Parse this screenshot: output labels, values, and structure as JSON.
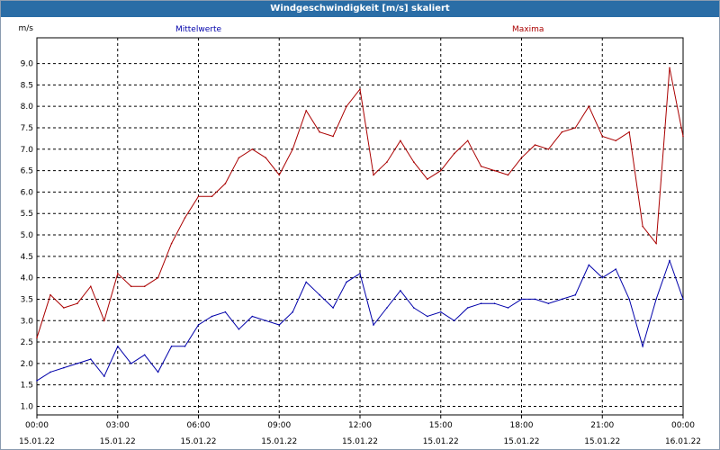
{
  "window": {
    "title": "Windgeschwindigkeit [m/s] skaliert"
  },
  "colors": {
    "mean": "#0000aa",
    "max": "#aa0000",
    "grid": "#000000",
    "titlebar": "#2a6da6"
  },
  "chart_data": {
    "type": "line",
    "title": "Windgeschwindigkeit [m/s] skaliert",
    "ylabel": "m/s",
    "ylim": [
      0.8,
      9.6
    ],
    "yticks": [
      "1.0",
      "1.5",
      "2.0",
      "2.5",
      "3.0",
      "3.5",
      "4.0",
      "4.5",
      "5.0",
      "5.5",
      "6.0",
      "6.5",
      "7.0",
      "7.5",
      "8.0",
      "8.5",
      "9.0"
    ],
    "xlim": [
      "2022-01-15 00:00",
      "2022-01-16 00:00"
    ],
    "xticks": [
      {
        "time": "00:00",
        "date": "15.01.22"
      },
      {
        "time": "03:00",
        "date": "15.01.22"
      },
      {
        "time": "06:00",
        "date": "15.01.22"
      },
      {
        "time": "09:00",
        "date": "15.01.22"
      },
      {
        "time": "12:00",
        "date": "15.01.22"
      },
      {
        "time": "15:00",
        "date": "15.01.22"
      },
      {
        "time": "18:00",
        "date": "15.01.22"
      },
      {
        "time": "21:00",
        "date": "15.01.22"
      },
      {
        "time": "00:00",
        "date": "16.01.22"
      }
    ],
    "grid": true,
    "x": [
      "00:00",
      "00:30",
      "01:00",
      "01:30",
      "02:00",
      "02:30",
      "03:00",
      "03:30",
      "04:00",
      "04:30",
      "05:00",
      "05:30",
      "06:00",
      "06:30",
      "07:00",
      "07:30",
      "08:00",
      "08:30",
      "09:00",
      "09:30",
      "10:00",
      "10:30",
      "11:00",
      "11:30",
      "12:00",
      "12:30",
      "13:00",
      "13:30",
      "14:00",
      "14:30",
      "15:00",
      "15:30",
      "16:00",
      "16:30",
      "17:00",
      "17:30",
      "18:00",
      "18:30",
      "19:00",
      "19:30",
      "20:00",
      "20:30",
      "21:00",
      "21:30",
      "22:00",
      "22:30",
      "23:00",
      "23:30",
      "24:00"
    ],
    "series": [
      {
        "name": "Mittelwerte",
        "color": "#0000aa",
        "values": [
          1.6,
          1.8,
          1.9,
          2.0,
          2.1,
          1.7,
          2.4,
          2.0,
          2.2,
          1.8,
          2.4,
          2.4,
          2.9,
          3.1,
          3.2,
          2.8,
          3.1,
          3.0,
          2.9,
          3.2,
          3.9,
          3.6,
          3.3,
          3.9,
          4.1,
          2.9,
          3.3,
          3.7,
          3.3,
          3.1,
          3.2,
          3.0,
          3.3,
          3.4,
          3.4,
          3.3,
          3.5,
          3.5,
          3.4,
          3.5,
          3.6,
          4.3,
          4.0,
          4.2,
          3.5,
          2.4,
          3.5,
          4.4,
          3.5
        ]
      },
      {
        "name": "Maxima",
        "color": "#aa0000",
        "values": [
          2.6,
          3.6,
          3.3,
          3.4,
          3.8,
          3.0,
          4.1,
          3.8,
          3.8,
          4.0,
          4.8,
          5.4,
          5.9,
          5.9,
          6.2,
          6.8,
          7.0,
          6.8,
          6.4,
          7.0,
          7.9,
          7.4,
          7.3,
          8.0,
          8.4,
          6.4,
          6.7,
          7.2,
          6.7,
          6.3,
          6.5,
          6.9,
          7.2,
          6.6,
          6.5,
          6.4,
          6.8,
          7.1,
          7.0,
          7.4,
          7.5,
          8.0,
          7.3,
          7.2,
          7.4,
          5.2,
          4.8,
          8.9,
          7.3
        ]
      }
    ]
  }
}
